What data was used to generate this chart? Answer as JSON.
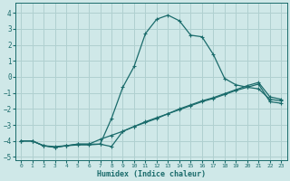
{
  "xlabel": "Humidex (Indice chaleur)",
  "bg_color": "#cfe8e8",
  "grid_color": "#b0d0d0",
  "line_color": "#1a6b6b",
  "spine_color": "#1a6b6b",
  "xlim": [
    -0.5,
    23.5
  ],
  "ylim": [
    -5.2,
    4.6
  ],
  "xticks": [
    0,
    1,
    2,
    3,
    4,
    5,
    6,
    7,
    8,
    9,
    10,
    11,
    12,
    13,
    14,
    15,
    16,
    17,
    18,
    19,
    20,
    21,
    22,
    23
  ],
  "yticks": [
    -5,
    -4,
    -3,
    -2,
    -1,
    0,
    1,
    2,
    3,
    4
  ],
  "line1_x": [
    0,
    1,
    2,
    3,
    4,
    5,
    6,
    7,
    8,
    9,
    10,
    11,
    12,
    13,
    14,
    15,
    16,
    17,
    18,
    19,
    20,
    21,
    22,
    23
  ],
  "line1_y": [
    -4.0,
    -4.0,
    -4.3,
    -4.4,
    -4.3,
    -4.2,
    -4.2,
    -4.2,
    -2.6,
    -0.65,
    0.65,
    2.7,
    3.6,
    3.85,
    3.5,
    2.6,
    2.5,
    1.4,
    -0.1,
    -0.5,
    -0.65,
    -0.75,
    -1.4,
    -1.5
  ],
  "line2_x": [
    0,
    1,
    2,
    3,
    4,
    5,
    6,
    7,
    8,
    9,
    10,
    11,
    12,
    13,
    14,
    15,
    16,
    17,
    18,
    19,
    20,
    21,
    22,
    23
  ],
  "line2_y": [
    -4.0,
    -4.0,
    -4.3,
    -4.35,
    -4.3,
    -4.25,
    -4.25,
    -4.2,
    -4.35,
    -3.4,
    -3.1,
    -2.8,
    -2.55,
    -2.3,
    -2.0,
    -1.75,
    -1.5,
    -1.3,
    -1.05,
    -0.8,
    -0.55,
    -0.35,
    -1.25,
    -1.4
  ],
  "line3_x": [
    0,
    1,
    2,
    3,
    4,
    5,
    6,
    7,
    8,
    9,
    10,
    11,
    12,
    13,
    14,
    15,
    16,
    17,
    18,
    19,
    20,
    21,
    22,
    23
  ],
  "line3_y": [
    -4.0,
    -4.0,
    -4.3,
    -4.4,
    -4.3,
    -4.2,
    -4.2,
    -3.9,
    -3.65,
    -3.4,
    -3.1,
    -2.85,
    -2.6,
    -2.3,
    -2.05,
    -1.8,
    -1.55,
    -1.35,
    -1.1,
    -0.85,
    -0.65,
    -0.45,
    -1.55,
    -1.65
  ]
}
